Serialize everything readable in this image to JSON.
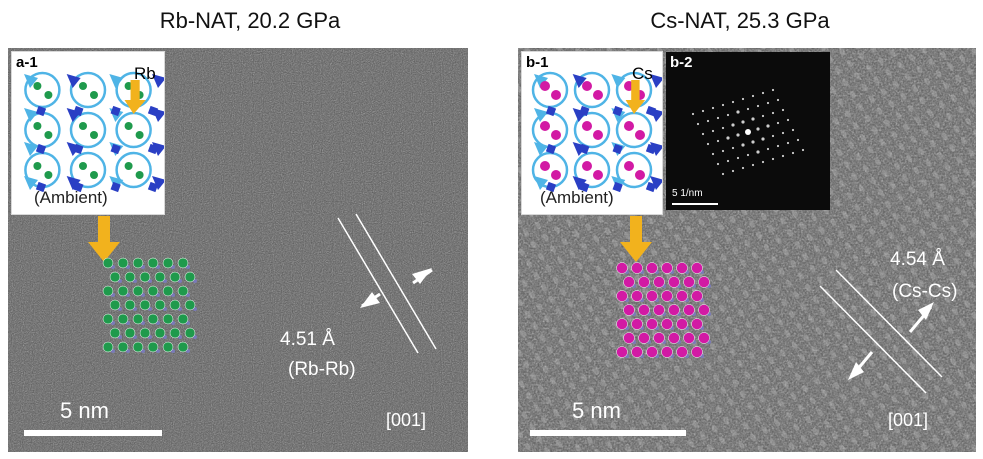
{
  "panels": [
    {
      "title": "Rb-NAT, 20.2 GPa",
      "inset_label": "a-1",
      "element": "Rb",
      "ambient": "(Ambient)",
      "spacing": "4.51 Å",
      "pair": "(Rb-Rb)",
      "scale": "5 nm",
      "zone_axis": "[001]",
      "atom_color": "#1f9a4c"
    },
    {
      "title": "Cs-NAT, 25.3 GPa",
      "inset_label": "b-1",
      "element": "Cs",
      "ambient": "(Ambient)",
      "spacing": "4.54 Å",
      "pair": "(Cs-Cs)",
      "scale": "5 nm",
      "zone_axis": "[001]",
      "atom_color": "#d21aa4",
      "fft_label": "b-2",
      "fft_scale": "5 1/nm"
    }
  ],
  "colors": {
    "framework_light": "#4fb4e6",
    "framework_dark": "#2a3fc4",
    "arrow_gold": "#f2b21d"
  }
}
